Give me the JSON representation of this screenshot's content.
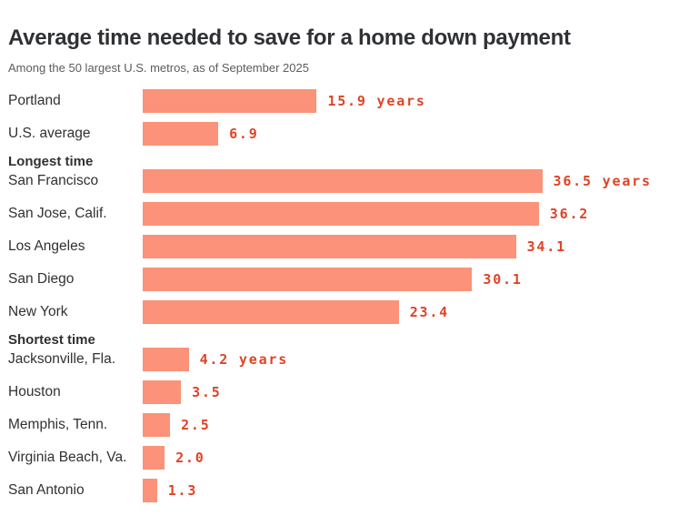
{
  "chart_data": {
    "type": "bar",
    "orientation": "horizontal",
    "title": "Average time needed to save for a home down payment",
    "subtitle": "Among the 50 largest U.S. metros, as of September 2025",
    "unit": "years",
    "xlim": [
      0,
      40
    ],
    "grid": false,
    "legend": false,
    "bar_color": "#fb9279",
    "value_text_color": "#df4426",
    "label_text_color": "#2f3134",
    "groups": [
      {
        "header": null,
        "rows": [
          {
            "label": "Portland",
            "value": 15.9,
            "value_label": "15.9 years"
          },
          {
            "label": "U.S. average",
            "value": 6.9,
            "value_label": "6.9"
          }
        ]
      },
      {
        "header": "Longest time",
        "rows": [
          {
            "label": "San Francisco",
            "value": 36.5,
            "value_label": "36.5 years"
          },
          {
            "label": "San Jose, Calif.",
            "value": 36.2,
            "value_label": "36.2"
          },
          {
            "label": "Los Angeles",
            "value": 34.1,
            "value_label": "34.1"
          },
          {
            "label": "San Diego",
            "value": 30.1,
            "value_label": "30.1"
          },
          {
            "label": "New York",
            "value": 23.4,
            "value_label": "23.4"
          }
        ]
      },
      {
        "header": "Shortest time",
        "rows": [
          {
            "label": "Jacksonville, Fla.",
            "value": 4.2,
            "value_label": "4.2 years"
          },
          {
            "label": "Houston",
            "value": 3.5,
            "value_label": "3.5"
          },
          {
            "label": "Memphis, Tenn.",
            "value": 2.5,
            "value_label": "2.5"
          },
          {
            "label": "Virginia Beach, Va.",
            "value": 2.0,
            "value_label": "2.0"
          },
          {
            "label": "San Antonio",
            "value": 1.3,
            "value_label": "1.3"
          }
        ]
      }
    ]
  }
}
